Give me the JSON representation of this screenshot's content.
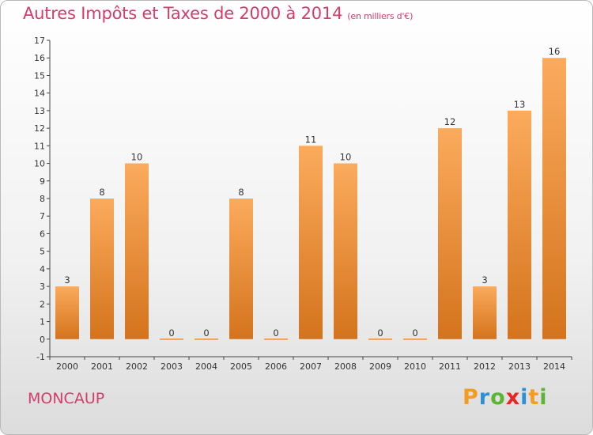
{
  "header": {
    "title": "Autres Impôts et Taxes de 2000 à 2014",
    "unit": "(en milliers d'€)"
  },
  "footer": {
    "commune": "MONCAUP",
    "brand": "Proxiti"
  },
  "colors": {
    "title": "#d43c6b",
    "bar_top": "#fbab5c",
    "bar_bottom": "#d4731d",
    "brand_p": "#f39c1e",
    "brand_r": "#2d8fd6",
    "brand_o": "#5bb533",
    "brand_x": "#e8262a",
    "brand_i": "#2d8fd6",
    "brand_t": "#f39c1e",
    "brand_i2": "#5bb533"
  },
  "chart_data": {
    "type": "bar",
    "title": "Autres Impôts et Taxes de 2000 à 2014",
    "subtitle": "(en milliers d'€)",
    "categories": [
      "2000",
      "2001",
      "2002",
      "2003",
      "2004",
      "2005",
      "2006",
      "2007",
      "2008",
      "2009",
      "2010",
      "2011",
      "2012",
      "2013",
      "2014"
    ],
    "values": [
      3,
      8,
      10,
      0,
      0,
      8,
      0,
      11,
      10,
      0,
      0,
      12,
      3,
      13,
      16
    ],
    "ylim": [
      -1,
      17
    ],
    "yticks": [
      -1,
      0,
      1,
      2,
      3,
      4,
      5,
      6,
      7,
      8,
      9,
      10,
      11,
      12,
      13,
      14,
      15,
      16,
      17
    ],
    "grid": false,
    "xlabel": "",
    "ylabel": ""
  }
}
